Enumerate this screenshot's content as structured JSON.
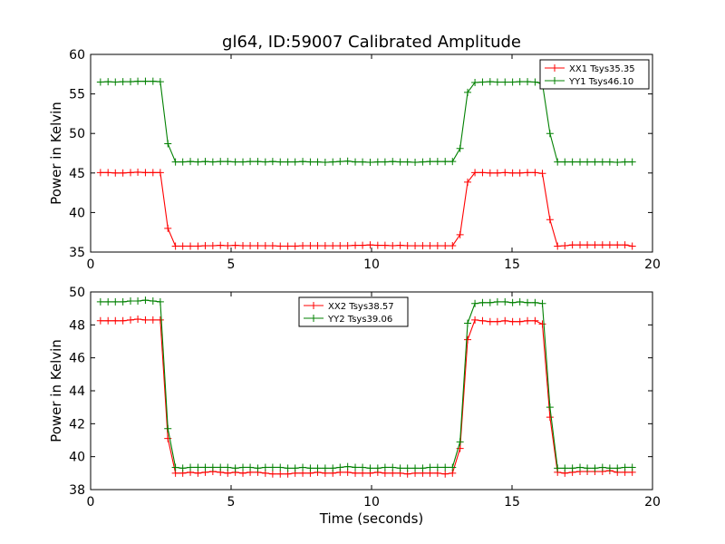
{
  "figure": {
    "title": "gl64, ID:59007 Calibrated Amplitude"
  },
  "chart_data": [
    {
      "type": "line",
      "title": "gl64, ID:59007 Calibrated Amplitude",
      "xlabel": "",
      "ylabel": "Power in Kelvin",
      "xlim": [
        0,
        20
      ],
      "ylim": [
        35,
        60
      ],
      "xticks": [
        0,
        5,
        10,
        15,
        20
      ],
      "yticks": [
        35,
        40,
        45,
        50,
        55,
        60
      ],
      "grid": false,
      "legend_position": "top-right",
      "series": [
        {
          "name": "XX1 Tsys35.35",
          "color": "#ff0000",
          "x": [
            0.35,
            0.62,
            0.88,
            1.15,
            1.42,
            1.68,
            1.95,
            2.22,
            2.48,
            2.75,
            3.02,
            3.28,
            3.55,
            3.82,
            4.08,
            4.35,
            4.62,
            4.88,
            5.15,
            5.42,
            5.68,
            5.95,
            6.22,
            6.48,
            6.75,
            7.02,
            7.28,
            7.55,
            7.82,
            8.08,
            8.35,
            8.62,
            8.88,
            9.15,
            9.42,
            9.68,
            9.95,
            10.22,
            10.48,
            10.75,
            11.02,
            11.28,
            11.55,
            11.82,
            12.08,
            12.35,
            12.62,
            12.88,
            13.15,
            13.42,
            13.68,
            13.95,
            14.22,
            14.48,
            14.75,
            15.02,
            15.28,
            15.55,
            15.82,
            16.08,
            16.35,
            16.62,
            16.88,
            17.15,
            17.42,
            17.68,
            17.95,
            18.22,
            18.48,
            18.75,
            19.02,
            19.28
          ],
          "y": [
            45.05,
            45.05,
            45.0,
            45.0,
            45.05,
            45.1,
            45.05,
            45.05,
            45.05,
            38.0,
            35.75,
            35.75,
            35.75,
            35.75,
            35.8,
            35.8,
            35.85,
            35.8,
            35.85,
            35.8,
            35.8,
            35.8,
            35.8,
            35.8,
            35.75,
            35.75,
            35.75,
            35.8,
            35.8,
            35.8,
            35.8,
            35.8,
            35.8,
            35.8,
            35.85,
            35.85,
            35.9,
            35.85,
            35.85,
            35.8,
            35.85,
            35.8,
            35.8,
            35.8,
            35.8,
            35.8,
            35.8,
            35.8,
            37.2,
            43.85,
            45.05,
            45.05,
            45.0,
            45.0,
            45.05,
            45.0,
            45.0,
            45.05,
            45.05,
            44.95,
            39.1,
            35.75,
            35.8,
            35.9,
            35.9,
            35.9,
            35.9,
            35.9,
            35.9,
            35.9,
            35.9,
            35.75
          ]
        },
        {
          "name": "YY1 Tsys46.10",
          "color": "#008000",
          "x": [
            0.35,
            0.62,
            0.88,
            1.15,
            1.42,
            1.68,
            1.95,
            2.22,
            2.48,
            2.75,
            3.02,
            3.28,
            3.55,
            3.82,
            4.08,
            4.35,
            4.62,
            4.88,
            5.15,
            5.42,
            5.68,
            5.95,
            6.22,
            6.48,
            6.75,
            7.02,
            7.28,
            7.55,
            7.82,
            8.08,
            8.35,
            8.62,
            8.88,
            9.15,
            9.42,
            9.68,
            9.95,
            10.22,
            10.48,
            10.75,
            11.02,
            11.28,
            11.55,
            11.82,
            12.08,
            12.35,
            12.62,
            12.88,
            13.15,
            13.42,
            13.68,
            13.95,
            14.22,
            14.48,
            14.75,
            15.02,
            15.28,
            15.55,
            15.82,
            16.08,
            16.35,
            16.62,
            16.88,
            17.15,
            17.42,
            17.68,
            17.95,
            18.22,
            18.48,
            18.75,
            19.02,
            19.28
          ],
          "y": [
            56.5,
            56.55,
            56.5,
            56.55,
            56.55,
            56.6,
            56.6,
            56.6,
            56.55,
            48.7,
            46.4,
            46.4,
            46.45,
            46.4,
            46.45,
            46.4,
            46.45,
            46.45,
            46.4,
            46.4,
            46.45,
            46.45,
            46.4,
            46.45,
            46.4,
            46.4,
            46.4,
            46.45,
            46.4,
            46.4,
            46.35,
            46.4,
            46.45,
            46.5,
            46.4,
            46.4,
            46.35,
            46.4,
            46.4,
            46.45,
            46.4,
            46.4,
            46.35,
            46.4,
            46.45,
            46.45,
            46.45,
            46.45,
            48.1,
            55.2,
            56.45,
            56.5,
            56.55,
            56.5,
            56.5,
            56.5,
            56.55,
            56.55,
            56.5,
            56.35,
            50.0,
            46.4,
            46.4,
            46.4,
            46.4,
            46.4,
            46.4,
            46.4,
            46.4,
            46.35,
            46.4,
            46.4
          ]
        }
      ]
    },
    {
      "type": "line",
      "title": "",
      "xlabel": "Time (seconds)",
      "ylabel": "Power in Kelvin",
      "xlim": [
        0,
        20
      ],
      "ylim": [
        38,
        50
      ],
      "xticks": [
        0,
        5,
        10,
        15,
        20
      ],
      "yticks": [
        38,
        40,
        42,
        44,
        46,
        48,
        50
      ],
      "grid": false,
      "legend_position": "top-center",
      "series": [
        {
          "name": "XX2 Tsys38.57",
          "color": "#ff0000",
          "x": [
            0.35,
            0.62,
            0.88,
            1.15,
            1.42,
            1.68,
            1.95,
            2.22,
            2.48,
            2.75,
            3.02,
            3.28,
            3.55,
            3.82,
            4.08,
            4.35,
            4.62,
            4.88,
            5.15,
            5.42,
            5.68,
            5.95,
            6.22,
            6.48,
            6.75,
            7.02,
            7.28,
            7.55,
            7.82,
            8.08,
            8.35,
            8.62,
            8.88,
            9.15,
            9.42,
            9.68,
            9.95,
            10.22,
            10.48,
            10.75,
            11.02,
            11.28,
            11.55,
            11.82,
            12.08,
            12.35,
            12.62,
            12.88,
            13.15,
            13.42,
            13.68,
            13.95,
            14.22,
            14.48,
            14.75,
            15.02,
            15.28,
            15.55,
            15.82,
            16.08,
            16.35,
            16.62,
            16.88,
            17.15,
            17.42,
            17.68,
            17.95,
            18.22,
            18.48,
            18.75,
            19.02,
            19.28
          ],
          "y": [
            48.25,
            48.25,
            48.25,
            48.25,
            48.3,
            48.35,
            48.3,
            48.3,
            48.3,
            41.1,
            39.0,
            39.0,
            39.05,
            39.0,
            39.05,
            39.1,
            39.05,
            39.0,
            39.05,
            39.0,
            39.05,
            39.05,
            39.0,
            38.95,
            38.95,
            38.95,
            39.0,
            39.0,
            39.0,
            39.05,
            39.0,
            39.0,
            39.05,
            39.05,
            39.0,
            39.0,
            39.0,
            39.05,
            39.0,
            39.0,
            39.0,
            38.95,
            39.0,
            39.0,
            39.0,
            39.0,
            38.95,
            39.0,
            40.5,
            47.1,
            48.3,
            48.25,
            48.2,
            48.2,
            48.25,
            48.2,
            48.2,
            48.25,
            48.25,
            48.05,
            42.4,
            39.05,
            39.0,
            39.05,
            39.1,
            39.1,
            39.1,
            39.1,
            39.15,
            39.05,
            39.05,
            39.05
          ]
        },
        {
          "name": "YY2 Tsys39.06",
          "color": "#008000",
          "x": [
            0.35,
            0.62,
            0.88,
            1.15,
            1.42,
            1.68,
            1.95,
            2.22,
            2.48,
            2.75,
            3.02,
            3.28,
            3.55,
            3.82,
            4.08,
            4.35,
            4.62,
            4.88,
            5.15,
            5.42,
            5.68,
            5.95,
            6.22,
            6.48,
            6.75,
            7.02,
            7.28,
            7.55,
            7.82,
            8.08,
            8.35,
            8.62,
            8.88,
            9.15,
            9.42,
            9.68,
            9.95,
            10.22,
            10.48,
            10.75,
            11.02,
            11.28,
            11.55,
            11.82,
            12.08,
            12.35,
            12.62,
            12.88,
            13.15,
            13.42,
            13.68,
            13.95,
            14.22,
            14.48,
            14.75,
            15.02,
            15.28,
            15.55,
            15.82,
            16.08,
            16.35,
            16.62,
            16.88,
            17.15,
            17.42,
            17.68,
            17.95,
            18.22,
            18.48,
            18.75,
            19.02,
            19.28
          ],
          "y": [
            49.4,
            49.4,
            49.4,
            49.4,
            49.45,
            49.45,
            49.5,
            49.45,
            49.4,
            41.7,
            39.35,
            39.3,
            39.35,
            39.35,
            39.35,
            39.35,
            39.35,
            39.35,
            39.3,
            39.35,
            39.35,
            39.3,
            39.35,
            39.35,
            39.35,
            39.3,
            39.3,
            39.35,
            39.3,
            39.3,
            39.3,
            39.3,
            39.35,
            39.4,
            39.35,
            39.35,
            39.3,
            39.3,
            39.35,
            39.35,
            39.3,
            39.3,
            39.3,
            39.3,
            39.35,
            39.35,
            39.35,
            39.35,
            40.9,
            48.1,
            49.3,
            49.35,
            49.35,
            49.4,
            49.4,
            49.35,
            49.4,
            49.35,
            49.35,
            49.3,
            43.0,
            39.3,
            39.3,
            39.3,
            39.35,
            39.3,
            39.3,
            39.35,
            39.3,
            39.3,
            39.35,
            39.35
          ]
        }
      ]
    }
  ]
}
